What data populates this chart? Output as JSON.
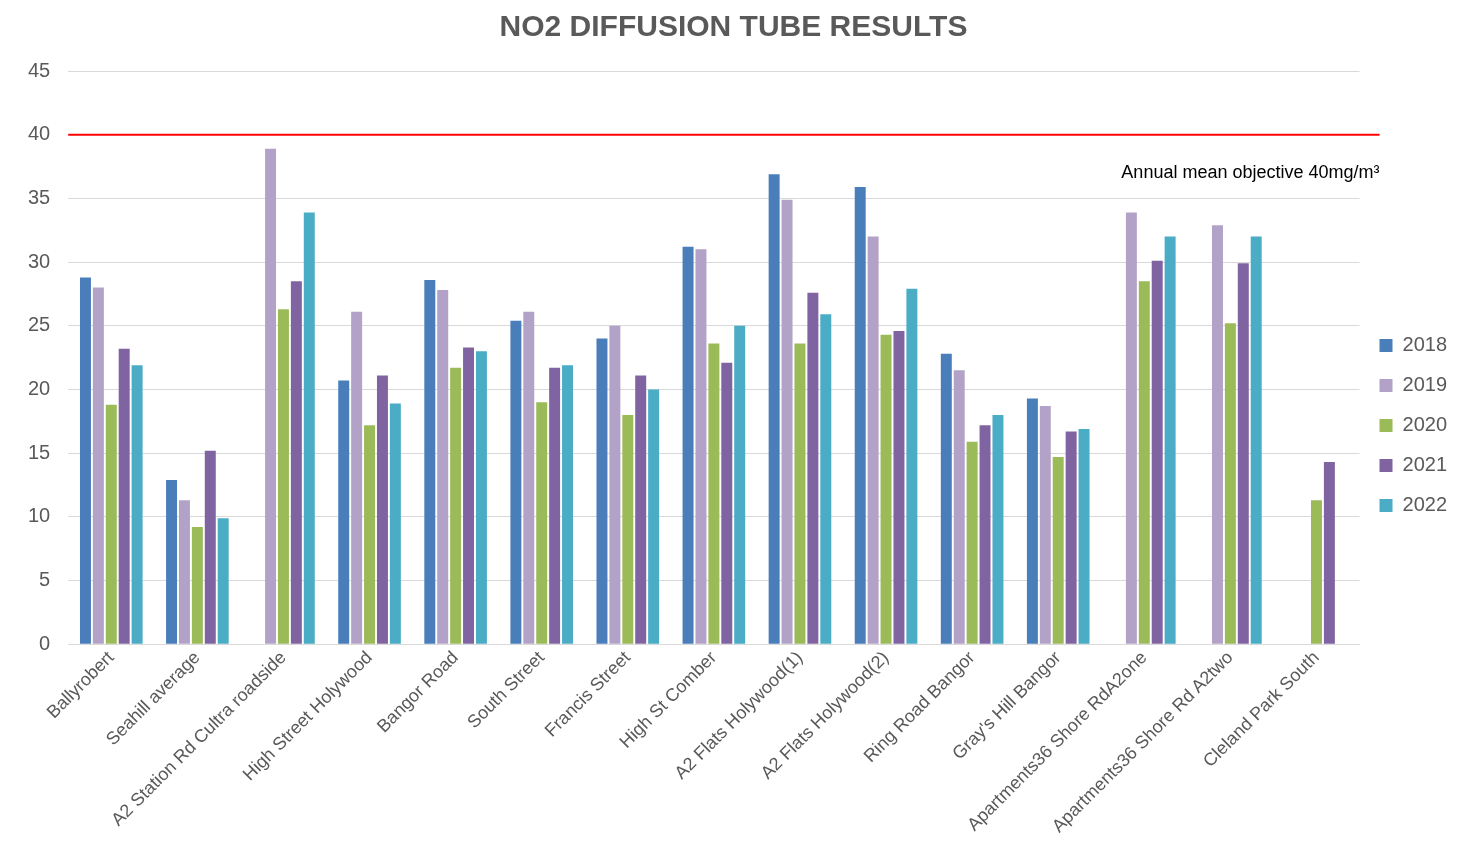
{
  "chart_data": {
    "type": "bar",
    "title": "NO2 DIFFUSION TUBE RESULTS",
    "categories": [
      "Ballyrobert",
      "Seahill average",
      "A2 Station Rd Cultra roadside",
      "High Street Holywood",
      "Bangor Road",
      "South Street",
      "Francis Street",
      "High St Comber",
      "A2 Flats Holywood(1)",
      "A2 Flats Holywood(2)",
      "Ring Road Bangor",
      "Gray's Hill Bangor",
      "Apartments36 Shore RdA2one",
      "Apartments36 Shore Rd A2two",
      "Cleland Park South"
    ],
    "series": [
      {
        "name": "2018",
        "color": "#4a7ebb",
        "values": [
          28.8,
          12.9,
          null,
          20.7,
          28.6,
          25.4,
          24.0,
          31.2,
          36.9,
          35.9,
          22.8,
          19.3,
          null,
          null,
          null
        ]
      },
      {
        "name": "2019",
        "color": "#b3a2c7",
        "values": [
          28.0,
          11.3,
          38.9,
          26.1,
          27.8,
          26.1,
          25.0,
          31.0,
          34.9,
          32.0,
          21.5,
          18.7,
          33.9,
          32.9,
          null
        ]
      },
      {
        "name": "2020",
        "color": "#9bbb59",
        "values": [
          18.8,
          9.2,
          26.3,
          17.2,
          21.7,
          19.0,
          18.0,
          23.6,
          23.6,
          24.3,
          15.9,
          14.7,
          28.5,
          25.2,
          11.3
        ]
      },
      {
        "name": "2021",
        "color": "#8064a2",
        "values": [
          23.2,
          15.2,
          28.5,
          21.1,
          23.3,
          21.7,
          21.1,
          22.1,
          27.6,
          24.6,
          17.2,
          16.7,
          30.1,
          29.9,
          14.3
        ]
      },
      {
        "name": "2022",
        "color": "#4bacc6",
        "values": [
          21.9,
          9.9,
          33.9,
          18.9,
          23.0,
          21.9,
          20.0,
          25.0,
          25.9,
          27.9,
          18.0,
          16.9,
          32.0,
          32.0,
          null
        ]
      }
    ],
    "ylim": [
      0,
      45
    ],
    "yticks": [
      0,
      5,
      10,
      15,
      20,
      25,
      30,
      35,
      40,
      45
    ],
    "grid": "y",
    "legend": "right",
    "ref_lines": [
      {
        "axis": "y",
        "value": 40,
        "label": "Annual mean objective 40mg/m³",
        "color": "#ff0000"
      }
    ]
  }
}
